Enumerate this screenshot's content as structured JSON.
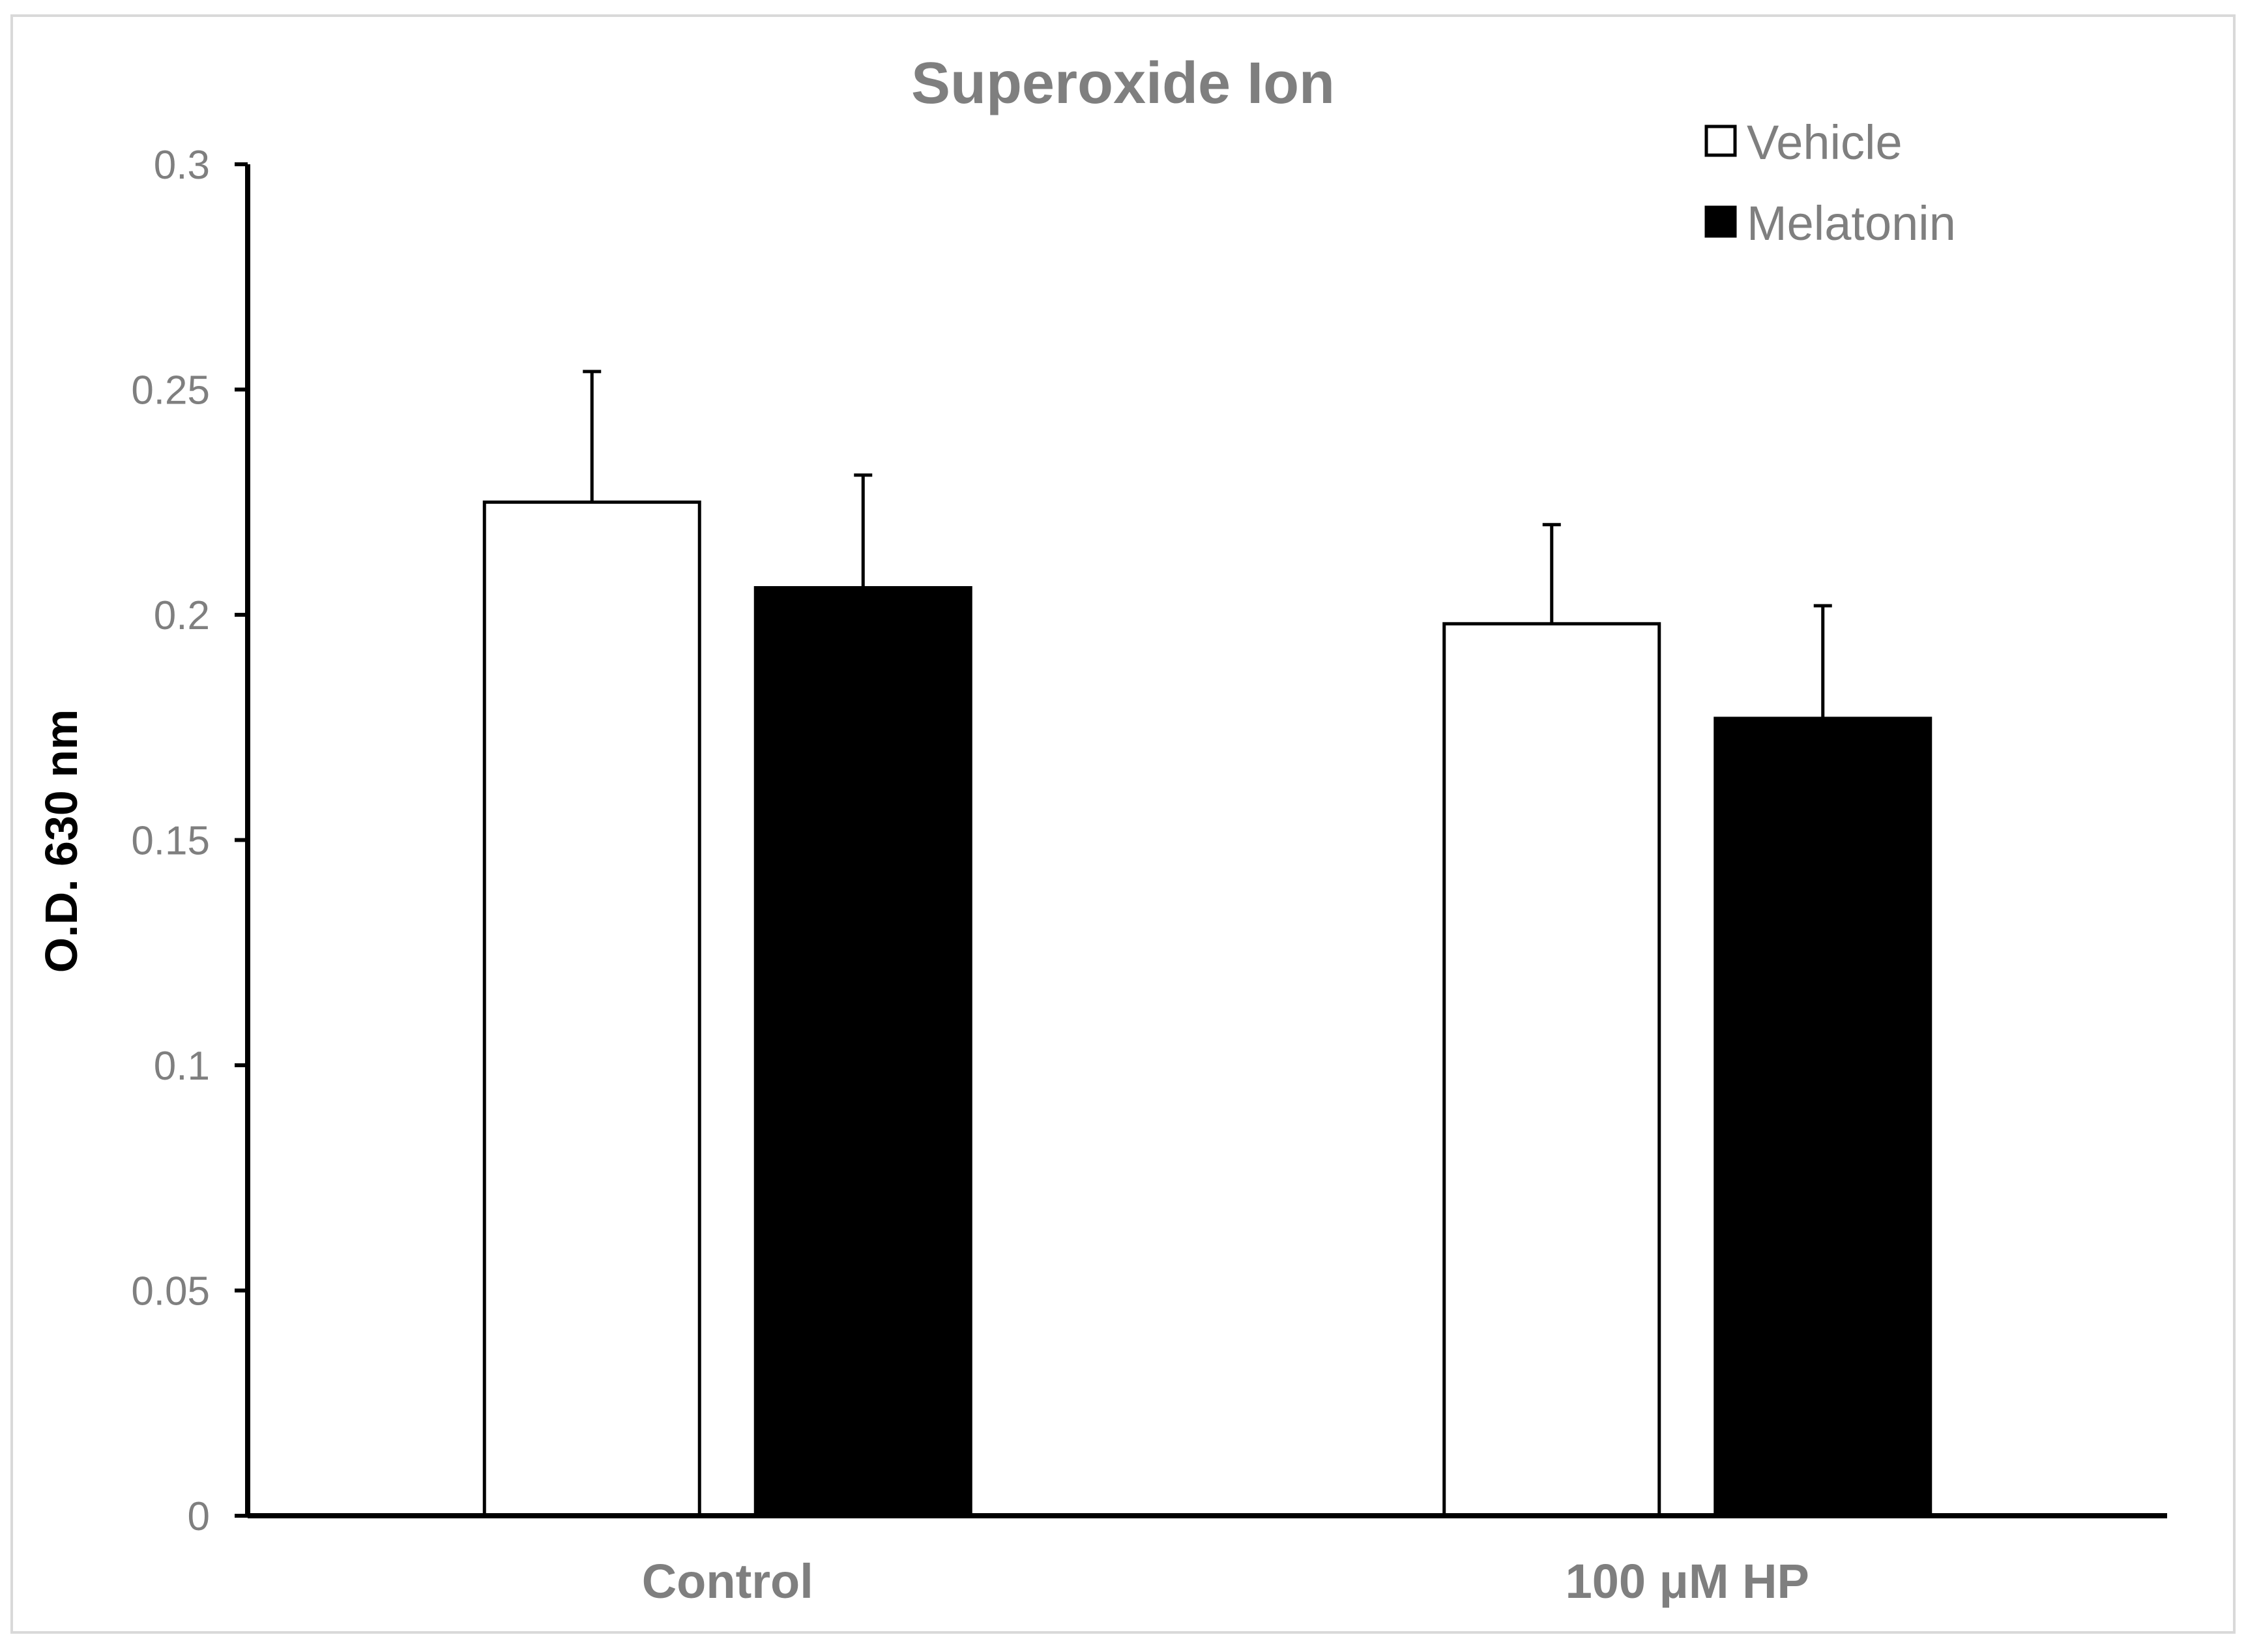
{
  "chart_data": {
    "type": "bar",
    "title": "Superoxide Ion",
    "xlabel": "",
    "ylabel": "O.D. 630 nm",
    "categories": [
      "Control",
      "100 μM HP"
    ],
    "series": [
      {
        "name": "Vehicle",
        "values": [
          0.225,
          0.198
        ],
        "errors": [
          0.029,
          0.022
        ],
        "color": "#ffffff"
      },
      {
        "name": "Melatonin",
        "values": [
          0.206,
          0.177
        ],
        "errors": [
          0.025,
          0.025
        ],
        "color": "#000000"
      }
    ],
    "ylim": [
      0,
      0.3
    ],
    "yticks": [
      "0",
      "0.05",
      "0.1",
      "0.15",
      "0.2",
      "0.25",
      "0.3"
    ],
    "grid": false,
    "legend_position": "top-right",
    "frame_color": "#d9d9d9"
  }
}
